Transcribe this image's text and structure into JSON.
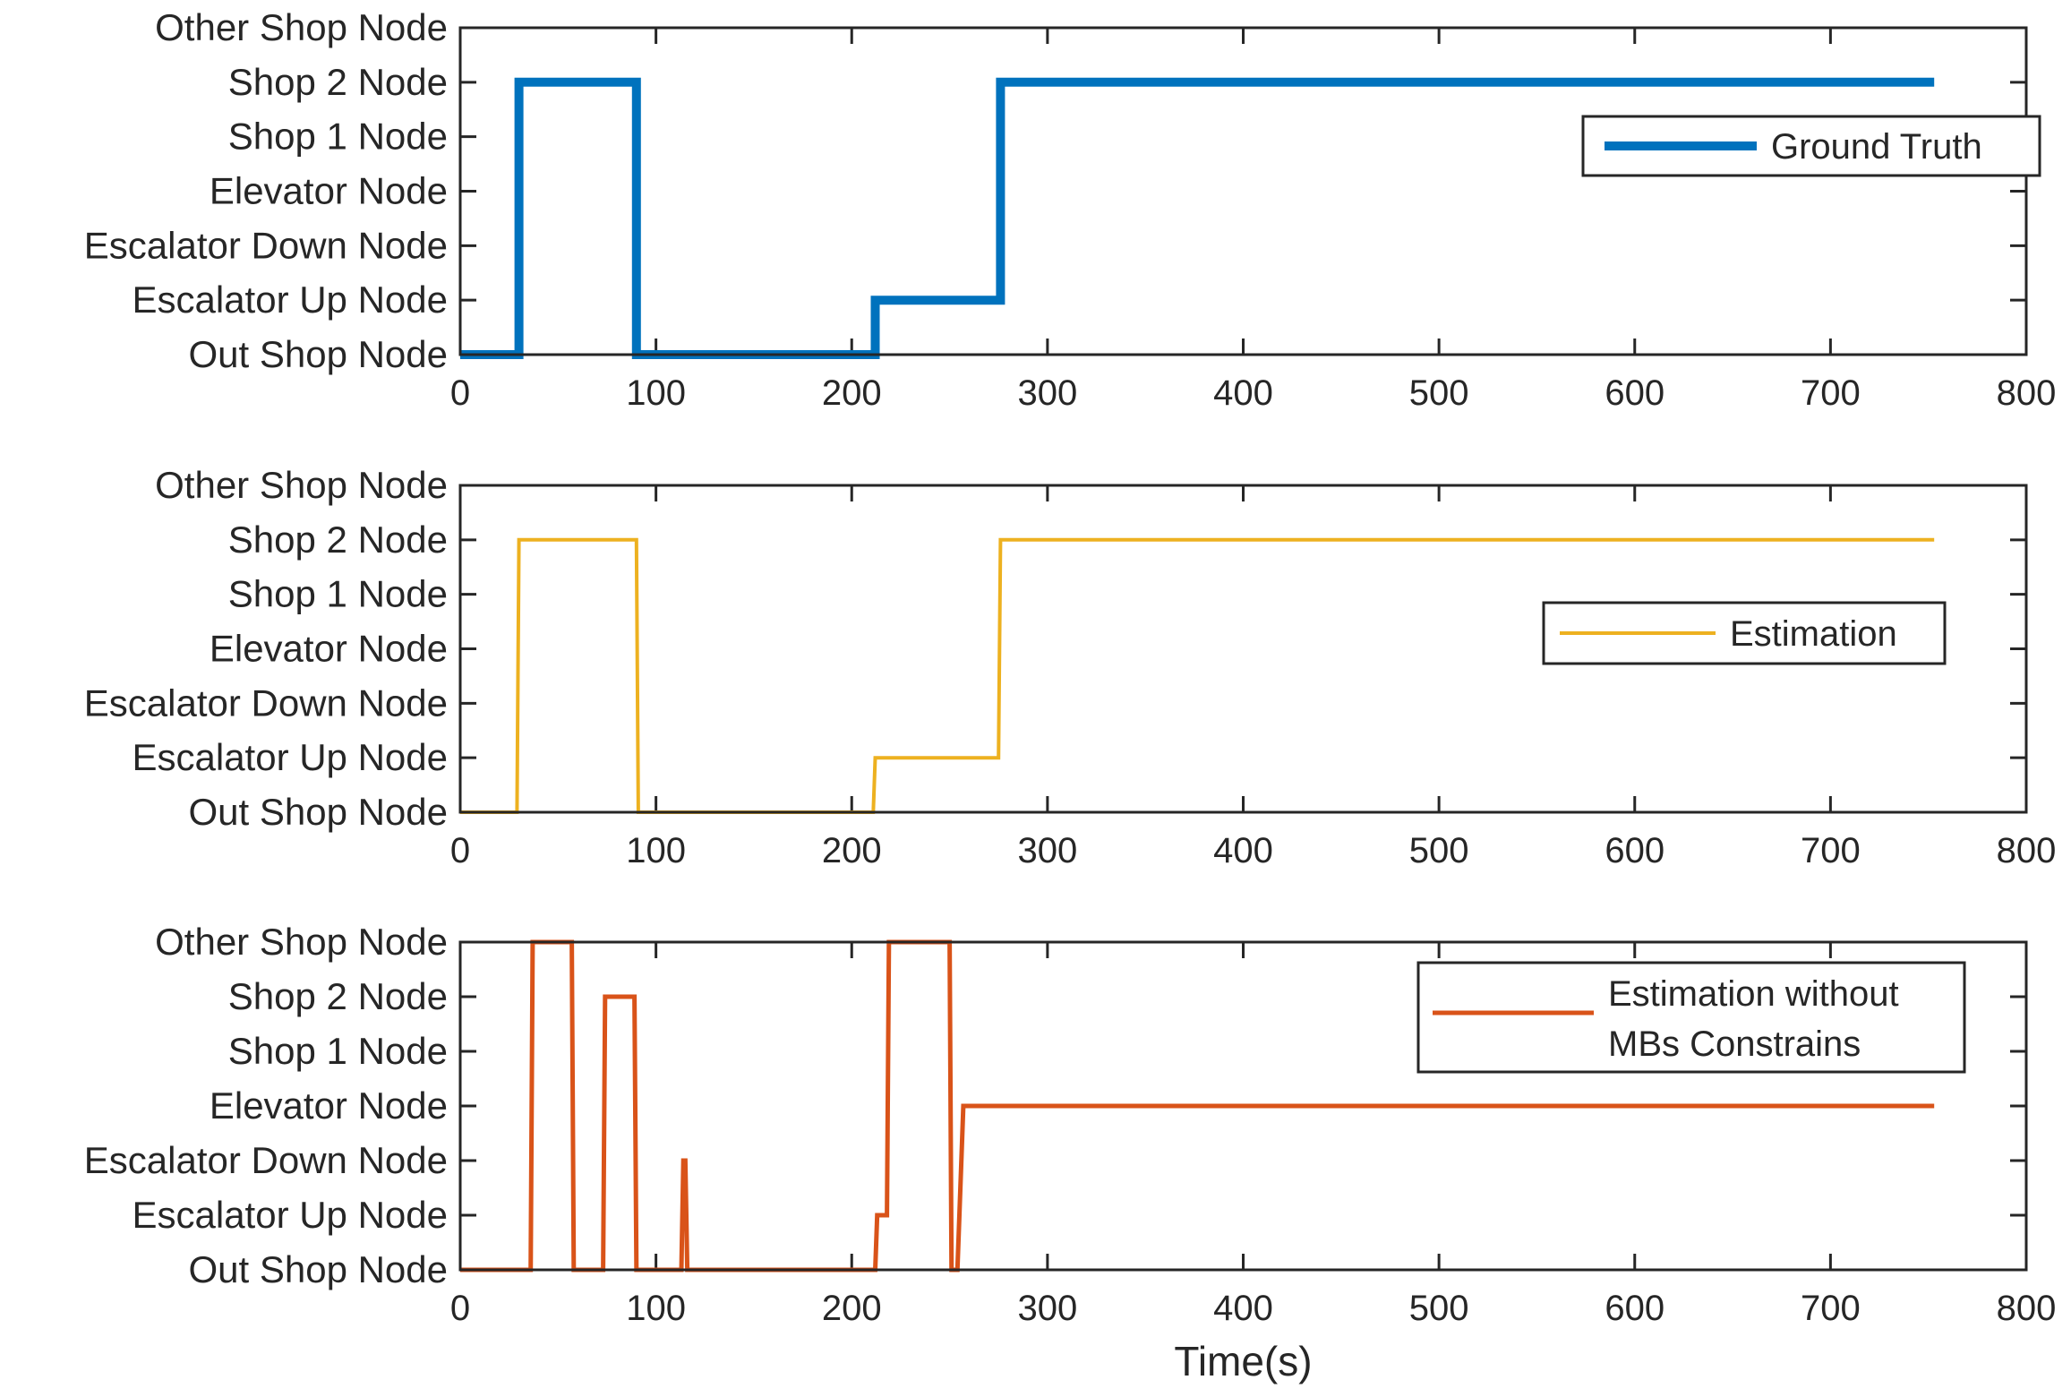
{
  "chart_data": [
    {
      "type": "line",
      "series": [
        {
          "name": "Ground Truth",
          "color": "#0072BD",
          "x": [
            0,
            30,
            30,
            90,
            90,
            212,
            212,
            276,
            276,
            753
          ],
          "y": [
            0,
            0,
            5,
            5,
            0,
            0,
            1,
            1,
            5,
            5
          ]
        }
      ],
      "legend": [
        "Ground Truth"
      ],
      "legend_position": "right",
      "xlim": [
        0,
        800
      ],
      "ylim": [
        0,
        6
      ],
      "xticks": [
        "0",
        "100",
        "200",
        "300",
        "400",
        "500",
        "600",
        "700",
        "800"
      ],
      "ytick_labels": [
        "Out Shop Node",
        "Escalator Up Node",
        "Escalator Down Node",
        "Elevator Node",
        "Shop 1 Node",
        "Shop 2 Node",
        "Other Shop Node"
      ],
      "xlabel": ""
    },
    {
      "type": "line",
      "series": [
        {
          "name": "Estimation",
          "color": "#EDB120",
          "x": [
            0,
            29,
            30,
            90,
            91,
            211,
            212,
            275,
            276,
            753
          ],
          "y": [
            0,
            0,
            5,
            5,
            0,
            0,
            1,
            1,
            5,
            5
          ]
        }
      ],
      "legend": [
        "Estimation"
      ],
      "legend_position": "right",
      "xlim": [
        0,
        800
      ],
      "ylim": [
        0,
        6
      ],
      "xticks": [
        "0",
        "100",
        "200",
        "300",
        "400",
        "500",
        "600",
        "700",
        "800"
      ],
      "ytick_labels": [
        "Out Shop Node",
        "Escalator Up Node",
        "Escalator Down Node",
        "Elevator Node",
        "Shop 1 Node",
        "Shop 2 Node",
        "Other Shop Node"
      ],
      "xlabel": ""
    },
    {
      "type": "line",
      "series": [
        {
          "name": "Estimation without MBs Constrains",
          "color": "#D95319",
          "x": [
            0,
            36,
            37,
            57,
            58,
            73,
            74,
            89,
            90,
            113,
            114,
            115,
            116,
            212,
            213,
            218,
            219,
            250,
            251,
            254,
            257,
            753
          ],
          "y": [
            0,
            0,
            6,
            6,
            0,
            0,
            5,
            5,
            0,
            0,
            2,
            2,
            0,
            0,
            1,
            1,
            6,
            6,
            0,
            0,
            3,
            3
          ]
        }
      ],
      "legend": [
        "Estimation without",
        "MBs Constrains"
      ],
      "legend_position": "top-right",
      "xlim": [
        0,
        800
      ],
      "ylim": [
        0,
        6
      ],
      "xticks": [
        "0",
        "100",
        "200",
        "300",
        "400",
        "500",
        "600",
        "700",
        "800"
      ],
      "ytick_labels": [
        "Out Shop Node",
        "Escalator Up Node",
        "Escalator Down Node",
        "Elevator Node",
        "Shop 1 Node",
        "Shop 2 Node",
        "Other Shop Node"
      ],
      "xlabel": "Time(s)"
    }
  ]
}
